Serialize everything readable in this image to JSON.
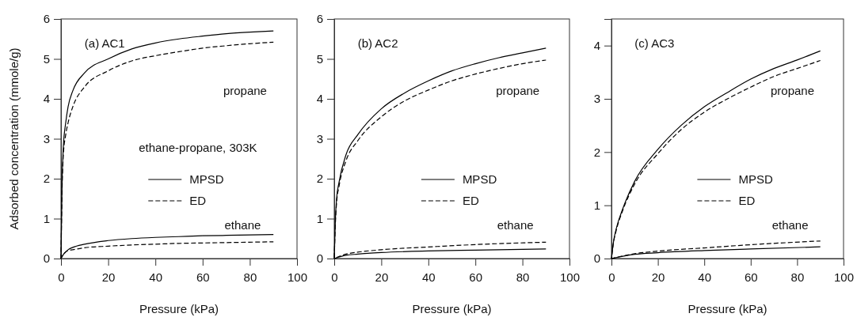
{
  "chart_data": [
    {
      "type": "line",
      "title": "(a) AC1",
      "xlabel": "Pressure (kPa)",
      "ylabel": "Adsorbed concentration (mmole/g)",
      "legend_title": "ethane-propane, 303K",
      "legend": "right",
      "xlim": [
        0,
        100
      ],
      "ylim": [
        0,
        6
      ],
      "xticks": [
        0,
        20,
        40,
        60,
        80,
        100
      ],
      "yticks": [
        0,
        1,
        2,
        3,
        4,
        5,
        6
      ],
      "grid": false,
      "marker": "none",
      "annotations": [
        "propane",
        "ethane"
      ],
      "series": [
        {
          "name": "MPSD",
          "color": "#000000",
          "line_style": "solid",
          "x": [
            0,
            0.5,
            1,
            2,
            3,
            5,
            10,
            20,
            30,
            40,
            50,
            60,
            70,
            80,
            90
          ],
          "values": [
            0,
            2,
            2.8,
            3.4,
            3.8,
            4.2,
            4.65,
            5.0,
            5.25,
            5.4,
            5.5,
            5.57,
            5.63,
            5.67,
            5.7
          ]
        },
        {
          "name": "ED",
          "color": "#000000",
          "line_style": "dashed",
          "x": [
            0,
            0.5,
            1,
            2,
            3,
            5,
            10,
            20,
            30,
            40,
            50,
            60,
            70,
            80,
            90
          ],
          "values": [
            0,
            1.8,
            2.6,
            3.1,
            3.4,
            3.8,
            4.3,
            4.7,
            4.95,
            5.08,
            5.18,
            5.27,
            5.33,
            5.38,
            5.42
          ]
        },
        {
          "color": "#000000",
          "line_style": "solid",
          "x": [
            0,
            1,
            3,
            5,
            10,
            20,
            30,
            40,
            50,
            60,
            70,
            80,
            90
          ],
          "values": [
            0,
            0.1,
            0.22,
            0.28,
            0.36,
            0.45,
            0.5,
            0.53,
            0.55,
            0.57,
            0.58,
            0.59,
            0.6
          ]
        },
        {
          "color": "#000000",
          "line_style": "dashed",
          "x": [
            0,
            1,
            3,
            5,
            10,
            20,
            30,
            40,
            50,
            60,
            70,
            80,
            90
          ],
          "values": [
            0,
            0.1,
            0.2,
            0.22,
            0.27,
            0.31,
            0.34,
            0.36,
            0.38,
            0.39,
            0.4,
            0.41,
            0.42
          ]
        }
      ]
    },
    {
      "type": "line",
      "title": "(b) AC2",
      "xlabel": "Pressure (kPa)",
      "legend": "right",
      "xlim": [
        0,
        100
      ],
      "ylim": [
        0,
        6
      ],
      "xticks": [
        0,
        20,
        40,
        60,
        80,
        100
      ],
      "yticks": [
        0,
        1,
        2,
        3,
        4,
        5,
        6
      ],
      "grid": false,
      "marker": "none",
      "annotations": [
        "propane",
        "ethane"
      ],
      "series": [
        {
          "name": "MPSD",
          "color": "#000000",
          "line_style": "solid",
          "x": [
            0,
            0.5,
            1,
            2,
            5,
            10,
            20,
            30,
            40,
            50,
            60,
            70,
            80,
            90
          ],
          "values": [
            0,
            1.0,
            1.5,
            1.9,
            2.6,
            3.1,
            3.75,
            4.15,
            4.45,
            4.7,
            4.88,
            5.03,
            5.15,
            5.27
          ]
        },
        {
          "name": "ED",
          "color": "#000000",
          "line_style": "dashed",
          "x": [
            0,
            0.5,
            1,
            2,
            5,
            10,
            20,
            30,
            40,
            50,
            60,
            70,
            80,
            90
          ],
          "values": [
            0,
            0.9,
            1.4,
            1.8,
            2.45,
            2.95,
            3.55,
            3.95,
            4.22,
            4.45,
            4.62,
            4.76,
            4.88,
            4.97
          ]
        },
        {
          "color": "#000000",
          "line_style": "solid",
          "x": [
            0,
            5,
            10,
            20,
            40,
            60,
            90
          ],
          "values": [
            0,
            0.08,
            0.11,
            0.15,
            0.19,
            0.21,
            0.24
          ]
        },
        {
          "color": "#000000",
          "line_style": "dashed",
          "x": [
            0,
            5,
            10,
            20,
            40,
            60,
            90
          ],
          "values": [
            0,
            0.11,
            0.16,
            0.22,
            0.29,
            0.35,
            0.41
          ]
        }
      ]
    },
    {
      "type": "line",
      "title": "(c) AC3",
      "xlabel": "Pressure (kPa)",
      "legend": "right",
      "xlim": [
        0,
        100
      ],
      "ylim": [
        0,
        4.5
      ],
      "xticks": [
        0,
        20,
        40,
        60,
        80,
        100
      ],
      "yticks": [
        0,
        1,
        2,
        3,
        4
      ],
      "grid": false,
      "marker": "none",
      "annotations": [
        "propane",
        "ethane"
      ],
      "series": [
        {
          "name": "MPSD",
          "color": "#000000",
          "line_style": "solid",
          "x": [
            0,
            1,
            2,
            5,
            10,
            20,
            30,
            40,
            50,
            60,
            70,
            80,
            90
          ],
          "values": [
            0,
            0.35,
            0.55,
            0.95,
            1.45,
            2.05,
            2.5,
            2.85,
            3.12,
            3.37,
            3.57,
            3.73,
            3.9
          ]
        },
        {
          "name": "ED",
          "color": "#000000",
          "line_style": "dashed",
          "x": [
            0,
            1,
            2,
            5,
            10,
            20,
            30,
            40,
            50,
            60,
            70,
            80,
            90
          ],
          "values": [
            0,
            0.33,
            0.52,
            0.92,
            1.4,
            1.97,
            2.42,
            2.75,
            3.0,
            3.22,
            3.42,
            3.57,
            3.72
          ]
        },
        {
          "color": "#000000",
          "line_style": "solid",
          "x": [
            0,
            10,
            20,
            40,
            60,
            90
          ],
          "values": [
            0,
            0.08,
            0.11,
            0.15,
            0.18,
            0.22
          ]
        },
        {
          "color": "#000000",
          "line_style": "dashed",
          "x": [
            0,
            10,
            20,
            40,
            60,
            90
          ],
          "values": [
            0,
            0.09,
            0.14,
            0.2,
            0.26,
            0.33
          ]
        }
      ]
    }
  ]
}
